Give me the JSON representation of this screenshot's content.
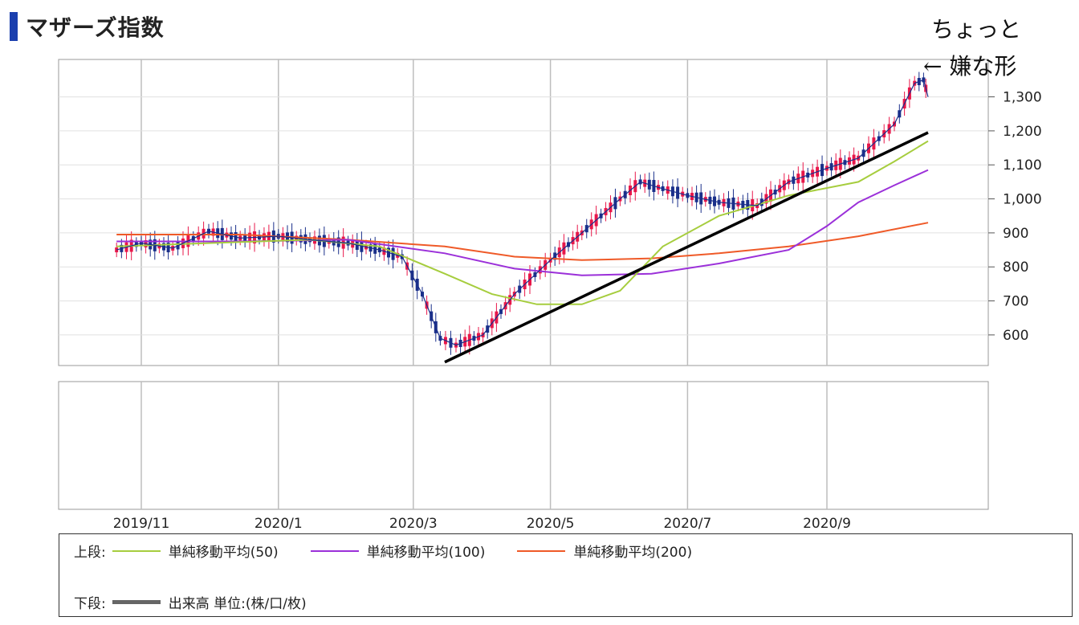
{
  "title": "マザーズ指数",
  "annotation": {
    "line1": "ちょっと",
    "line2": "← 嫌な形"
  },
  "colors": {
    "title_mark": "#1b3fae",
    "up_candle": "#e8174a",
    "down_candle": "#1a2f8a",
    "ma50": "#a6cd3e",
    "ma100": "#9b30d9",
    "ma200": "#ef5a28",
    "trendline": "#000000",
    "volume": "#666666",
    "grid": "#bdbdbd"
  },
  "chart_data": {
    "type": "line",
    "title": "マザーズ指数",
    "x_ticks": [
      "2019/11",
      "2020/1",
      "2020/3",
      "2020/5",
      "2020/7",
      "2020/9"
    ],
    "y_ticks": [
      "600",
      "700",
      "800",
      "900",
      "1,000",
      "1,100",
      "1,200",
      "1,300"
    ],
    "ylim": [
      510,
      1410
    ],
    "grid": true,
    "series": [
      {
        "name": "マザーズ指数",
        "style": "candlestick",
        "x": [
          "2019/10/21",
          "2019/11/1",
          "2019/11/15",
          "2019/12/1",
          "2019/12/15",
          "2020/1/1",
          "2020/1/15",
          "2020/2/1",
          "2020/2/15",
          "2020/2/25",
          "2020/3/5",
          "2020/3/13",
          "2020/3/20",
          "2020/4/1",
          "2020/4/15",
          "2020/5/1",
          "2020/5/15",
          "2020/6/1",
          "2020/6/10",
          "2020/6/20",
          "2020/7/1",
          "2020/7/15",
          "2020/8/1",
          "2020/8/15",
          "2020/9/1",
          "2020/9/15",
          "2020/10/1",
          "2020/10/10",
          "2020/10/14",
          "2020/10/16"
        ],
        "values": [
          850,
          870,
          855,
          905,
          885,
          890,
          880,
          870,
          850,
          830,
          720,
          590,
          570,
          600,
          720,
          820,
          900,
          1000,
          1050,
          1030,
          1010,
          990,
          980,
          1050,
          1090,
          1120,
          1220,
          1340,
          1350,
          1300
        ]
      },
      {
        "name": "単純移動平均(50)",
        "x": [
          "2019/10/21",
          "2019/12/1",
          "2020/1/15",
          "2020/2/15",
          "2020/3/15",
          "2020/4/5",
          "2020/4/25",
          "2020/5/15",
          "2020/6/1",
          "2020/6/20",
          "2020/7/15",
          "2020/8/15",
          "2020/9/15",
          "2020/10/1",
          "2020/10/16"
        ],
        "values": [
          860,
          870,
          880,
          860,
          780,
          720,
          690,
          690,
          730,
          860,
          950,
          1010,
          1050,
          1110,
          1170
        ]
      },
      {
        "name": "単純移動平均(100)",
        "x": [
          "2019/10/21",
          "2019/12/15",
          "2020/2/1",
          "2020/3/15",
          "2020/4/15",
          "2020/5/15",
          "2020/6/15",
          "2020/7/15",
          "2020/8/15",
          "2020/9/1",
          "2020/9/15",
          "2020/10/1",
          "2020/10/16"
        ],
        "values": [
          875,
          875,
          880,
          840,
          795,
          775,
          780,
          810,
          850,
          920,
          990,
          1040,
          1085
        ]
      },
      {
        "name": "単純移動平均(200)",
        "x": [
          "2019/10/21",
          "2019/12/15",
          "2020/2/1",
          "2020/3/15",
          "2020/4/15",
          "2020/5/15",
          "2020/6/15",
          "2020/7/15",
          "2020/8/15",
          "2020/9/15",
          "2020/10/16"
        ],
        "values": [
          895,
          895,
          880,
          860,
          830,
          820,
          825,
          840,
          860,
          890,
          930
        ]
      }
    ]
  },
  "trendline": {
    "x": [
      "2020/3/15",
      "2020/10/16"
    ],
    "values": [
      520,
      1195
    ]
  },
  "legend": {
    "upper_label": "上段:",
    "lower_label": "下段:",
    "ma50": "単純移動平均(50)",
    "ma100": "単純移動平均(100)",
    "ma200": "単純移動平均(200)",
    "volume": "出来高 単位:(株/口/枚)"
  }
}
